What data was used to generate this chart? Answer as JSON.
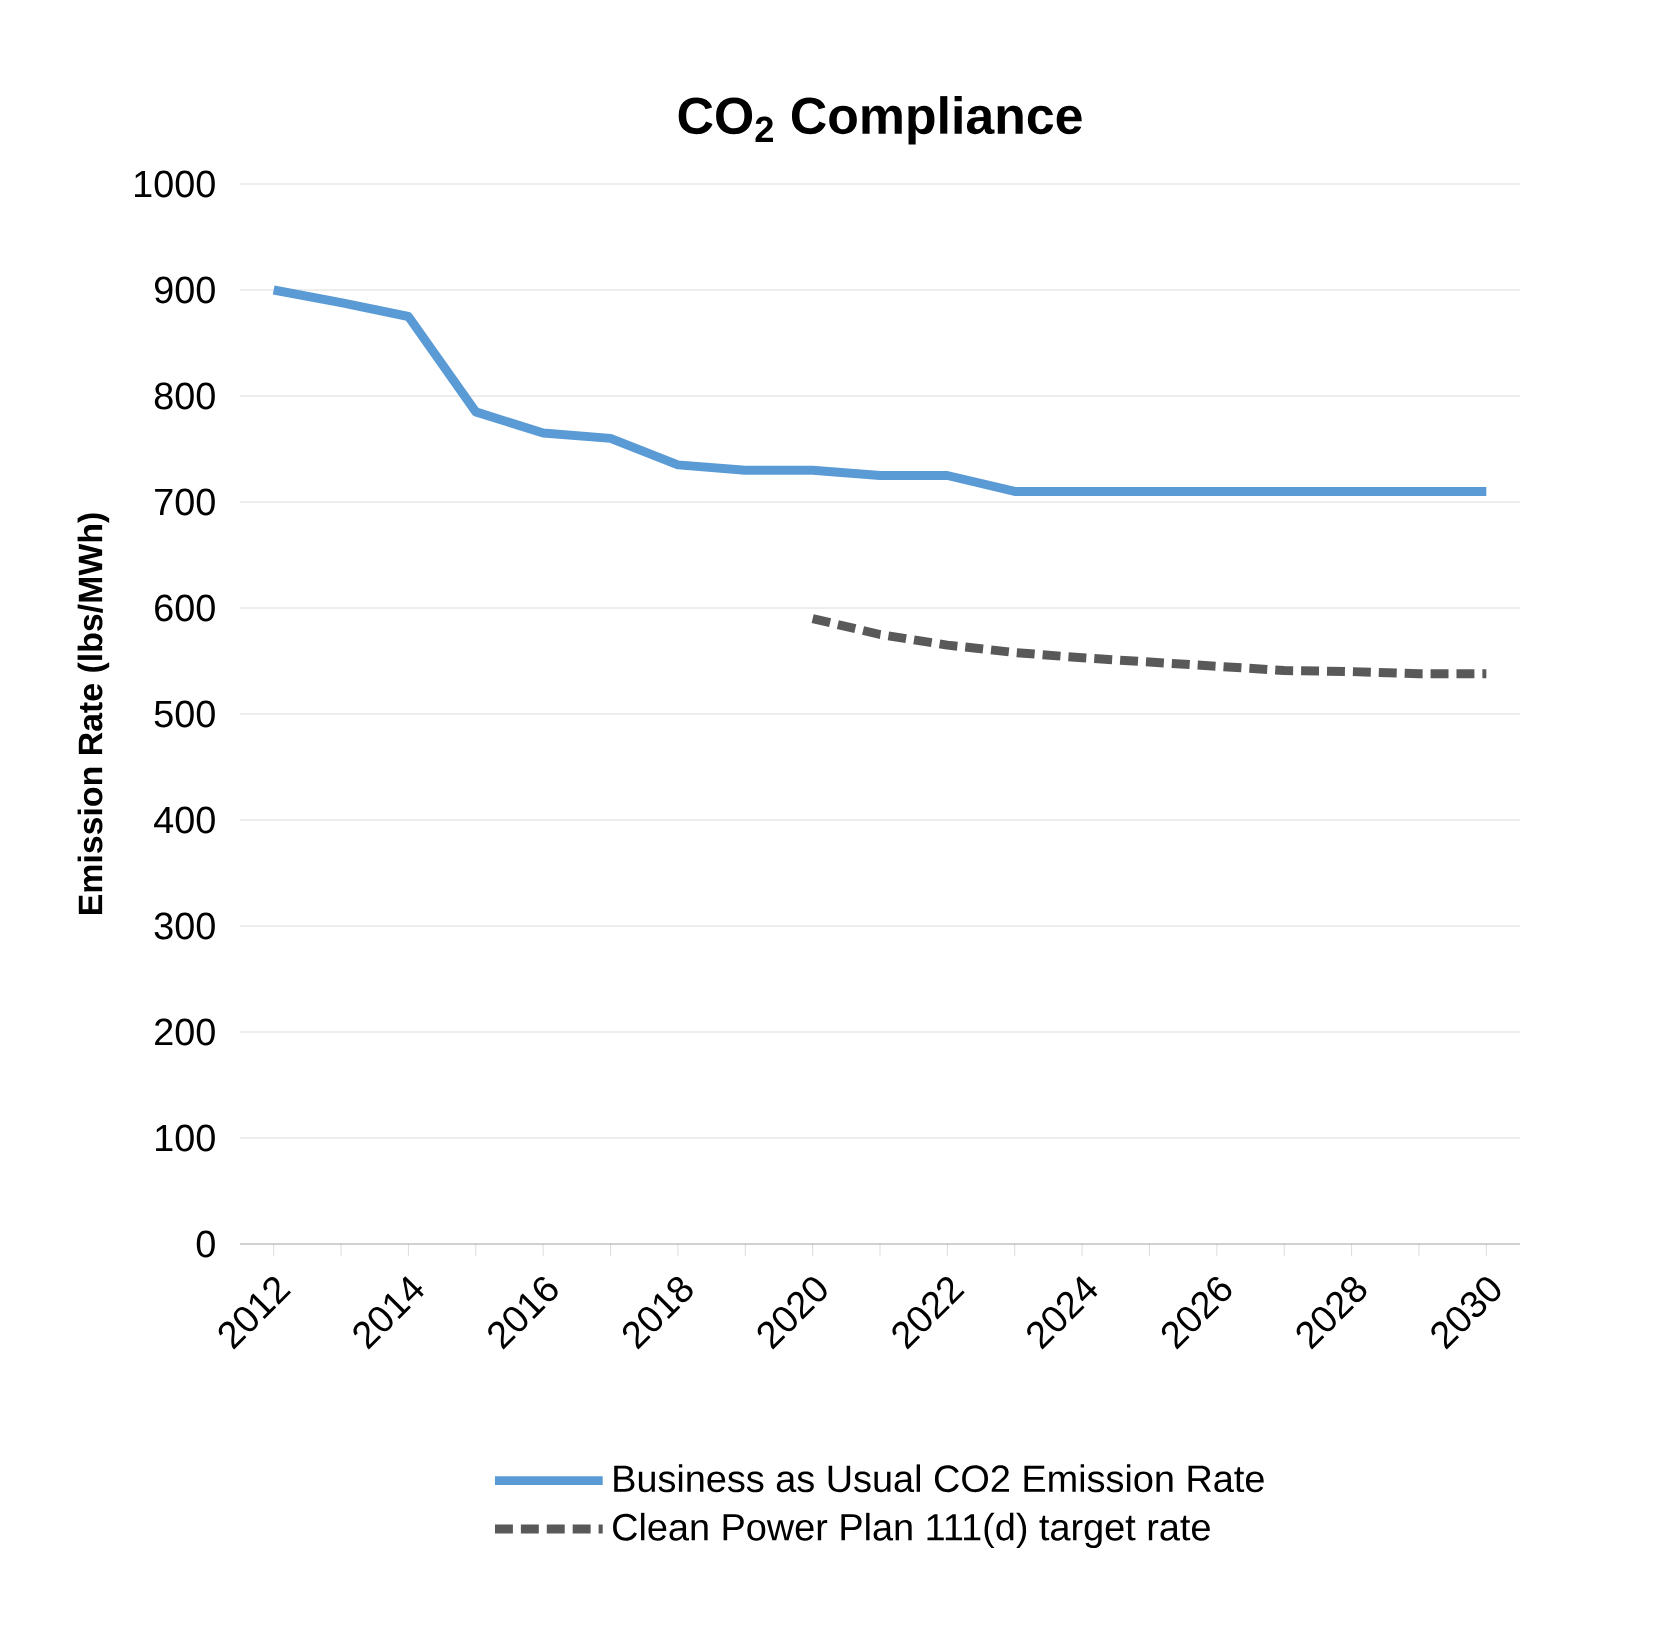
{
  "chart_data": {
    "type": "line",
    "title": "CO$_{2}$ Compliance",
    "ylabel": "Emission Rate (lbs/MWh)",
    "categories": [
      "2012",
      null,
      "2014",
      null,
      "2016",
      null,
      "2018",
      null,
      "2020",
      null,
      "2022",
      null,
      "2024",
      null,
      "2026",
      null,
      "2028",
      null,
      "2030"
    ],
    "series": [
      {
        "name": "Business as Usual CO2 Emission Rate",
        "color": "#5b9bd5",
        "line_style": "solid",
        "values": [
          900,
          888,
          875,
          785,
          765,
          760,
          735,
          730,
          730,
          725,
          725,
          710,
          710,
          710,
          710,
          710,
          710,
          710,
          710
        ]
      },
      {
        "name": "Clean Power Plan 111(d) target rate",
        "color": "#595959",
        "line_style": "dashed",
        "values": [
          null,
          null,
          null,
          null,
          null,
          null,
          null,
          null,
          590,
          575,
          565,
          558,
          553,
          549,
          545,
          541,
          540,
          538,
          538
        ]
      }
    ],
    "ylim": [
      0,
      1000
    ],
    "yticks": [
      0,
      100,
      200,
      300,
      400,
      500,
      600,
      700,
      800,
      900,
      1000
    ],
    "grid": "y",
    "legend": "bottom",
    "marker": "none"
  }
}
